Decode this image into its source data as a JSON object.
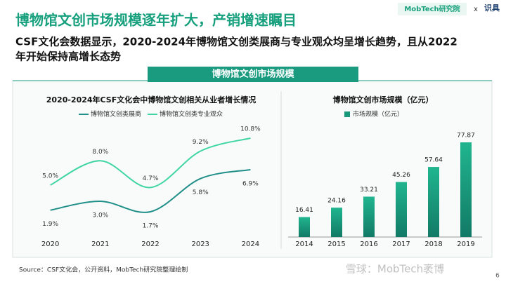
{
  "header": {
    "title": "博物馆文创市场规模逐年扩大，产销增速瞩目",
    "subtitle": [
      "CSF文化会数据显示，2020-2024年博物馆文创类展商与专业观众均呈增长趋势，且从2022",
      "年开始保持高增长态势"
    ]
  },
  "logo": {
    "brand": "MobTech研究院",
    "joiner": "x",
    "partner": "识具"
  },
  "banner": "博物馆文创市场规模",
  "chart_data": [
    {
      "type": "line",
      "title": "2020-2024年CSF文化会中博物馆文创相关从业者增长情况",
      "categories": [
        "2020",
        "2021",
        "2022",
        "2023",
        "2024"
      ],
      "series": [
        {
          "name": "博物馆文创类展商",
          "color": "#1f8f88",
          "values": [
            1.9,
            3.0,
            1.7,
            5.8,
            6.9
          ],
          "value_labels": [
            "1.9%",
            "3.0%",
            "1.7%",
            "5.8%",
            "6.9%"
          ]
        },
        {
          "name": "博物馆文创类专业观众",
          "color": "#3fd5a4",
          "values": [
            5.0,
            8.0,
            4.7,
            9.2,
            10.8
          ],
          "value_labels": [
            "5.0%",
            "8.0%",
            "4.7%",
            "9.2%",
            "10.8%"
          ]
        }
      ]
    },
    {
      "type": "bar",
      "title": "博物馆文创市场规模（亿元）",
      "categories": [
        "2014",
        "2015",
        "2016",
        "2017",
        "2018",
        "2019"
      ],
      "series": [
        {
          "name": "市场规模（亿元）",
          "color": "#17987a",
          "values": [
            16.41,
            24.16,
            33.21,
            45.26,
            57.64,
            77.87
          ]
        }
      ]
    }
  ],
  "source": "Source：CSF文化会，公开资料，MobTech研究院整理绘制",
  "watermark": "雪球：MobTech袤博",
  "page_number": "6"
}
